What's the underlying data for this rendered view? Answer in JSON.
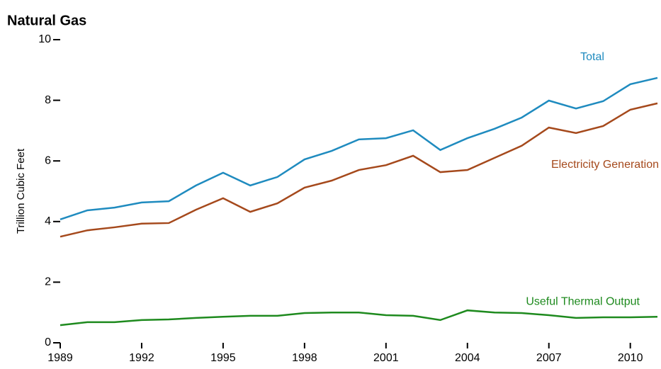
{
  "chart_data": {
    "type": "line",
    "title": "Natural Gas",
    "y_label": "Trillion Cubic Feet",
    "x": [
      1989,
      1990,
      1991,
      1992,
      1993,
      1994,
      1995,
      1996,
      1997,
      1998,
      1999,
      2000,
      2001,
      2002,
      2003,
      2004,
      2005,
      2006,
      2007,
      2008,
      2009,
      2010,
      2011
    ],
    "xlim": [
      1989,
      2011
    ],
    "xticks": [
      1989,
      1992,
      1995,
      1998,
      2001,
      2004,
      2007,
      2010
    ],
    "ylim": [
      0,
      10
    ],
    "yticks": [
      0,
      2,
      4,
      6,
      8,
      10
    ],
    "grid": false,
    "series": [
      {
        "name": "Total",
        "color": "#1f8bbf",
        "values": [
          4.07,
          4.37,
          4.46,
          4.63,
          4.67,
          5.19,
          5.61,
          5.19,
          5.47,
          6.05,
          6.33,
          6.71,
          6.75,
          7.01,
          6.36,
          6.75,
          7.06,
          7.43,
          7.99,
          7.73,
          7.97,
          8.53,
          8.74
        ]
      },
      {
        "name": "Electricity Generation",
        "color": "#a5491c",
        "values": [
          3.5,
          3.71,
          3.81,
          3.93,
          3.95,
          4.39,
          4.77,
          4.32,
          4.6,
          5.12,
          5.35,
          5.7,
          5.86,
          6.17,
          5.63,
          5.7,
          6.1,
          6.5,
          7.1,
          6.92,
          7.15,
          7.69,
          7.9
        ]
      },
      {
        "name": "Useful Thermal Output",
        "color": "#1e8a1e",
        "values": [
          0.58,
          0.68,
          0.68,
          0.75,
          0.77,
          0.82,
          0.86,
          0.89,
          0.89,
          0.98,
          1.0,
          1.0,
          0.91,
          0.89,
          0.75,
          1.07,
          1.0,
          0.98,
          0.91,
          0.82,
          0.84,
          0.84,
          0.86
        ]
      }
    ]
  }
}
